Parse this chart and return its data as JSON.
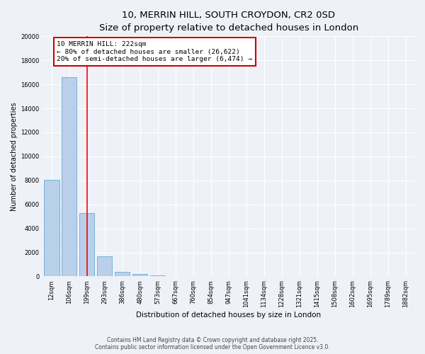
{
  "title_line1": "10, MERRIN HILL, SOUTH CROYDON, CR2 0SD",
  "title_line2": "Size of property relative to detached houses in London",
  "xlabel": "Distribution of detached houses by size in London",
  "ylabel": "Number of detached properties",
  "categories": [
    "12sqm",
    "106sqm",
    "199sqm",
    "293sqm",
    "386sqm",
    "480sqm",
    "573sqm",
    "667sqm",
    "760sqm",
    "854sqm",
    "947sqm",
    "1041sqm",
    "1134sqm",
    "1228sqm",
    "1321sqm",
    "1415sqm",
    "1508sqm",
    "1602sqm",
    "1695sqm",
    "1789sqm",
    "1882sqm"
  ],
  "bar_heights": [
    8050,
    16600,
    5300,
    1700,
    400,
    200,
    100,
    50,
    30,
    15,
    5,
    2,
    1,
    0,
    0,
    0,
    0,
    0,
    0,
    0,
    0
  ],
  "bar_color": "#b8d0ea",
  "bar_edge_color": "#6aaad4",
  "red_line_index": 2,
  "annotation_line1": "10 MERRIN HILL: 222sqm",
  "annotation_line2": "← 80% of detached houses are smaller (26,622)",
  "annotation_line3": "20% of semi-detached houses are larger (6,474) →",
  "annotation_box_color": "#ffffff",
  "annotation_box_edge_color": "#cc0000",
  "ylim": [
    0,
    20000
  ],
  "yticks": [
    0,
    2000,
    4000,
    6000,
    8000,
    10000,
    12000,
    14000,
    16000,
    18000,
    20000
  ],
  "footer_line1": "Contains HM Land Registry data © Crown copyright and database right 2025.",
  "footer_line2": "Contains public sector information licensed under the Open Government Licence v3.0.",
  "background_color": "#eef2f8",
  "grid_color": "#ffffff",
  "title_fontsize": 9.5,
  "subtitle_fontsize": 8.5,
  "tick_fontsize": 6,
  "ylabel_fontsize": 7,
  "xlabel_fontsize": 7.5,
  "annotation_fontsize": 6.8,
  "footer_fontsize": 5.5
}
